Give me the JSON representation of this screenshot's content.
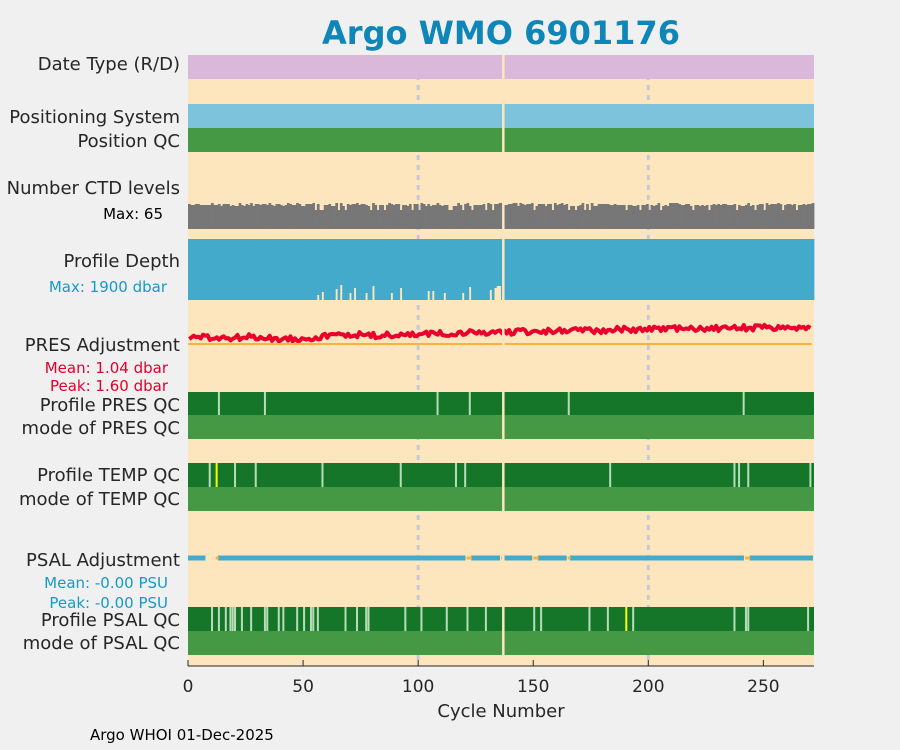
{
  "chart_data": {
    "type": "heatmap",
    "title": "Argo WMO 6901176",
    "xlabel": "Cycle Number",
    "xlim": [
      0,
      272
    ],
    "xticks": [
      0,
      50,
      100,
      150,
      200,
      250
    ],
    "vertical_gridlines": [
      100,
      200
    ],
    "gap_cycle": 137,
    "credit": "Argo WHOI 01-Dec-2025",
    "colors": {
      "background": "#fde6bd",
      "figure": "#f0f0f0",
      "date_type": "#d9b8d9",
      "positioning": "#7ec3dc",
      "qc_good": "#157529",
      "qc_mode": "#459945",
      "qc_light": "#b8dcb8",
      "qc_yellow": "#ffff00",
      "ctd_bar": "#777777",
      "depth_bar": "#44aacc",
      "pres_line": "#f7b23f",
      "pres_mean_text": "#e3002b",
      "psal_line": "#44aacc",
      "psal_text": "#1799c8",
      "depth_line": "#e9002c",
      "title": "#0f86b8"
    },
    "rows": {
      "date_type": "Date Type (R/D)",
      "positioning_system": "Positioning System",
      "position_qc": "Position QC",
      "number_ctd_levels": "Number CTD levels",
      "ctd_max": "Max: 65",
      "profile_depth": "Profile Depth",
      "depth_max": "Max: 1900 dbar",
      "pres_adjustment": "PRES Adjustment",
      "pres_mean": "Mean: 1.04 dbar",
      "pres_peak": "Peak: 1.60 dbar",
      "profile_pres_qc": "Profile PRES QC",
      "mode_pres_qc": "mode of PRES QC",
      "profile_temp_qc": "Profile TEMP QC",
      "mode_temp_qc": "mode of TEMP QC",
      "psal_adjustment": "PSAL Adjustment",
      "psal_mean": "Mean: -0.00 PSU",
      "psal_peak": "Peak: -0.00 PSU",
      "profile_psal_qc": "Profile PSAL QC",
      "mode_psal_qc": "mode of PSAL QC"
    },
    "series": {
      "ctd_dip_cycles": [
        55,
        57,
        58,
        65,
        68,
        79,
        82,
        85,
        92,
        97,
        100,
        113,
        114,
        119,
        123,
        129,
        132,
        150,
        158,
        165,
        168,
        172,
        174,
        190,
        196,
        200,
        205,
        219,
        226,
        238,
        246,
        250,
        258,
        264
      ],
      "depth_dip_cycles": [
        56,
        58,
        64,
        66,
        70,
        72,
        77,
        80,
        88,
        92,
        104,
        106,
        111,
        119,
        122,
        131,
        133,
        134,
        135
      ],
      "pres_qc_light_cycles": [
        13,
        33,
        108,
        122,
        165,
        241
      ],
      "temp_qc_light_cycles": [
        9,
        20,
        29,
        58,
        92,
        116,
        120,
        183,
        237,
        239,
        243,
        270
      ],
      "temp_qc_yellow_cycles": [
        12
      ],
      "psal_qc_light_cycles": [
        10,
        13,
        16,
        18,
        19,
        20,
        23,
        27,
        33,
        34,
        39,
        41,
        47,
        50,
        53,
        54,
        56,
        68,
        73,
        77,
        78,
        94,
        101,
        112,
        121,
        129,
        150,
        153,
        174,
        182,
        193,
        237,
        242,
        243,
        269
      ],
      "psal_qc_yellow_cycles": [
        190
      ],
      "psal_break_cycles": [
        8,
        9,
        10,
        11,
        12,
        121,
        122,
        136,
        150,
        151,
        165,
        242,
        243
      ]
    },
    "depth_line_base": [
      1820,
      1810,
      1820,
      1805,
      1815,
      1840,
      1830,
      1835,
      1845,
      1850,
      1855,
      1860,
      1865,
      1870,
      1875,
      1878,
      1880,
      1885,
      1888,
      1890,
      1892
    ]
  }
}
